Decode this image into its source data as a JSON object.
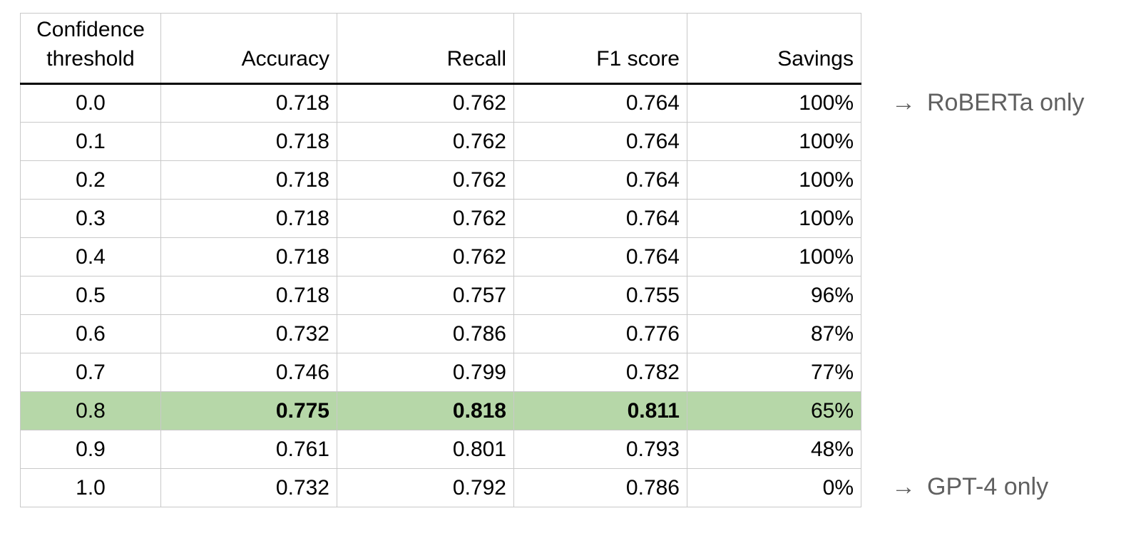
{
  "chart_data": {
    "type": "table",
    "columns": [
      "Confidence threshold",
      "Accuracy",
      "Recall",
      "F1 score",
      "Savings"
    ],
    "rows": [
      {
        "confidence_threshold": "0.0",
        "accuracy": "0.718",
        "recall": "0.762",
        "f1_score": "0.764",
        "savings": "100%",
        "highlighted": false,
        "bold_metrics": false
      },
      {
        "confidence_threshold": "0.1",
        "accuracy": "0.718",
        "recall": "0.762",
        "f1_score": "0.764",
        "savings": "100%",
        "highlighted": false,
        "bold_metrics": false
      },
      {
        "confidence_threshold": "0.2",
        "accuracy": "0.718",
        "recall": "0.762",
        "f1_score": "0.764",
        "savings": "100%",
        "highlighted": false,
        "bold_metrics": false
      },
      {
        "confidence_threshold": "0.3",
        "accuracy": "0.718",
        "recall": "0.762",
        "f1_score": "0.764",
        "savings": "100%",
        "highlighted": false,
        "bold_metrics": false
      },
      {
        "confidence_threshold": "0.4",
        "accuracy": "0.718",
        "recall": "0.762",
        "f1_score": "0.764",
        "savings": "100%",
        "highlighted": false,
        "bold_metrics": false
      },
      {
        "confidence_threshold": "0.5",
        "accuracy": "0.718",
        "recall": "0.757",
        "f1_score": "0.755",
        "savings": "96%",
        "highlighted": false,
        "bold_metrics": false
      },
      {
        "confidence_threshold": "0.6",
        "accuracy": "0.732",
        "recall": "0.786",
        "f1_score": "0.776",
        "savings": "87%",
        "highlighted": false,
        "bold_metrics": false
      },
      {
        "confidence_threshold": "0.7",
        "accuracy": "0.746",
        "recall": "0.799",
        "f1_score": "0.782",
        "savings": "77%",
        "highlighted": false,
        "bold_metrics": false
      },
      {
        "confidence_threshold": "0.8",
        "accuracy": "0.775",
        "recall": "0.818",
        "f1_score": "0.811",
        "savings": "65%",
        "highlighted": true,
        "bold_metrics": true
      },
      {
        "confidence_threshold": "0.9",
        "accuracy": "0.761",
        "recall": "0.801",
        "f1_score": "0.793",
        "savings": "48%",
        "highlighted": false,
        "bold_metrics": false
      },
      {
        "confidence_threshold": "1.0",
        "accuracy": "0.732",
        "recall": "0.792",
        "f1_score": "0.786",
        "savings": "0%",
        "highlighted": false,
        "bold_metrics": false
      }
    ],
    "annotations": [
      {
        "arrow": "→",
        "label": "RoBERTa only",
        "points_to_row": "0.0"
      },
      {
        "arrow": "→",
        "label": "GPT-4 only",
        "points_to_row": "1.0"
      }
    ]
  },
  "colors": {
    "highlight_green": "#b6d7a8",
    "grid_border": "#c9c9c9",
    "header_rule": "#000000",
    "cell_text": "#000000",
    "annotation_text": "#606060",
    "background": "#ffffff"
  }
}
